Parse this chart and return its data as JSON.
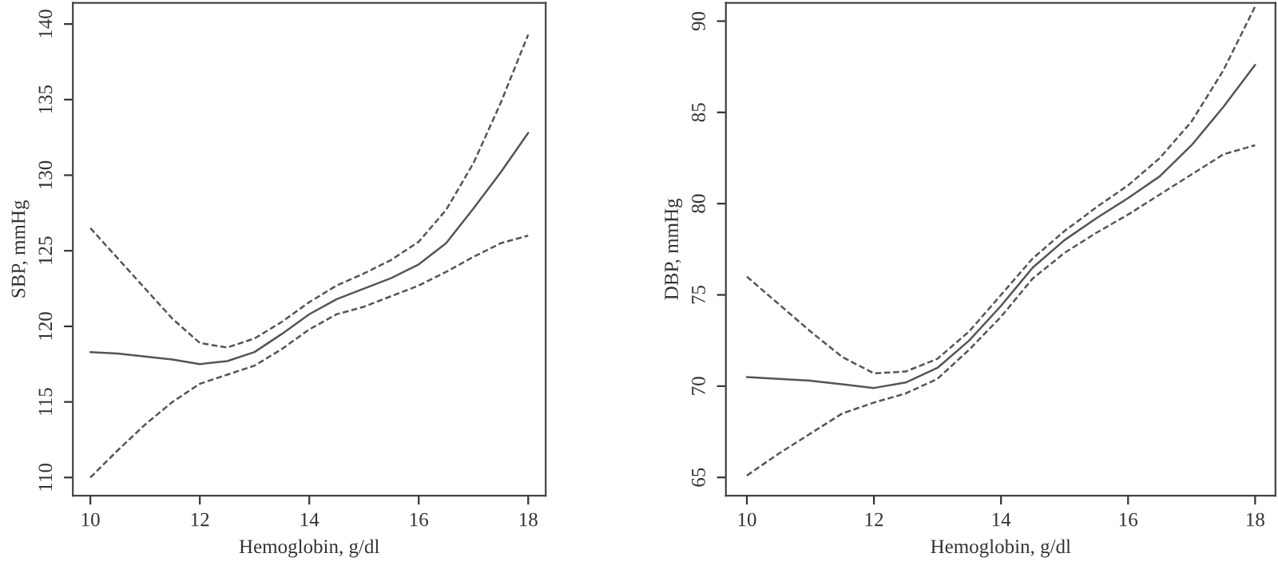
{
  "chart_data": [
    {
      "type": "line",
      "xlabel": "Hemoglobin, g/dl",
      "ylabel": "SBP, mmHg",
      "xlim": [
        9.68,
        18.32
      ],
      "ylim": [
        108.8,
        141.4
      ],
      "xticks": [
        10,
        12,
        14,
        16,
        18
      ],
      "yticks": [
        110,
        115,
        120,
        125,
        130,
        135,
        140
      ],
      "grid": false,
      "legend": false,
      "x": [
        10,
        10.5,
        11,
        11.5,
        12,
        12.5,
        13,
        13.5,
        14,
        14.5,
        15,
        15.5,
        16,
        16.5,
        17,
        17.5,
        18
      ],
      "series": [
        {
          "color": "#555555",
          "line_style": "solid",
          "values": [
            118.3,
            118.2,
            118.0,
            117.8,
            117.5,
            117.7,
            118.3,
            119.5,
            120.8,
            121.8,
            122.5,
            123.2,
            124.1,
            125.5,
            127.8,
            130.2,
            132.8
          ]
        },
        {
          "color": "#555555",
          "line_style": "dashed",
          "values": [
            126.5,
            124.5,
            122.5,
            120.5,
            118.9,
            118.6,
            119.2,
            120.3,
            121.6,
            122.7,
            123.5,
            124.4,
            125.6,
            127.7,
            130.8,
            134.8,
            139.3
          ]
        },
        {
          "color": "#555555",
          "line_style": "dashed",
          "values": [
            110.0,
            111.8,
            113.5,
            115.0,
            116.2,
            116.8,
            117.4,
            118.5,
            119.8,
            120.8,
            121.3,
            122.0,
            122.7,
            123.6,
            124.6,
            125.5,
            126.0
          ]
        }
      ]
    },
    {
      "type": "line",
      "xlabel": "Hemoglobin, g/dl",
      "ylabel": "DBP, mmHg",
      "xlim": [
        9.67,
        18.32
      ],
      "ylim": [
        64.0,
        91.0
      ],
      "xticks": [
        10,
        12,
        14,
        16,
        18
      ],
      "yticks": [
        65,
        70,
        75,
        80,
        85,
        90
      ],
      "grid": false,
      "legend": false,
      "x": [
        10,
        10.5,
        11,
        11.5,
        12,
        12.5,
        13,
        13.5,
        14,
        14.5,
        15,
        15.5,
        16,
        16.5,
        17,
        17.5,
        18
      ],
      "series": [
        {
          "color": "#555555",
          "line_style": "solid",
          "values": [
            70.5,
            70.4,
            70.3,
            70.1,
            69.9,
            70.2,
            71.0,
            72.5,
            74.4,
            76.5,
            78.0,
            79.2,
            80.3,
            81.5,
            83.2,
            85.3,
            87.6
          ]
        },
        {
          "color": "#555555",
          "line_style": "dashed",
          "values": [
            76.0,
            74.5,
            73.0,
            71.6,
            70.7,
            70.8,
            71.5,
            73.0,
            75.0,
            77.0,
            78.5,
            79.8,
            81.0,
            82.5,
            84.5,
            87.3,
            90.8
          ]
        },
        {
          "color": "#555555",
          "line_style": "dashed",
          "values": [
            65.1,
            66.3,
            67.4,
            68.5,
            69.1,
            69.6,
            70.4,
            72.0,
            73.8,
            75.9,
            77.3,
            78.4,
            79.4,
            80.5,
            81.6,
            82.7,
            83.2
          ]
        }
      ]
    }
  ]
}
